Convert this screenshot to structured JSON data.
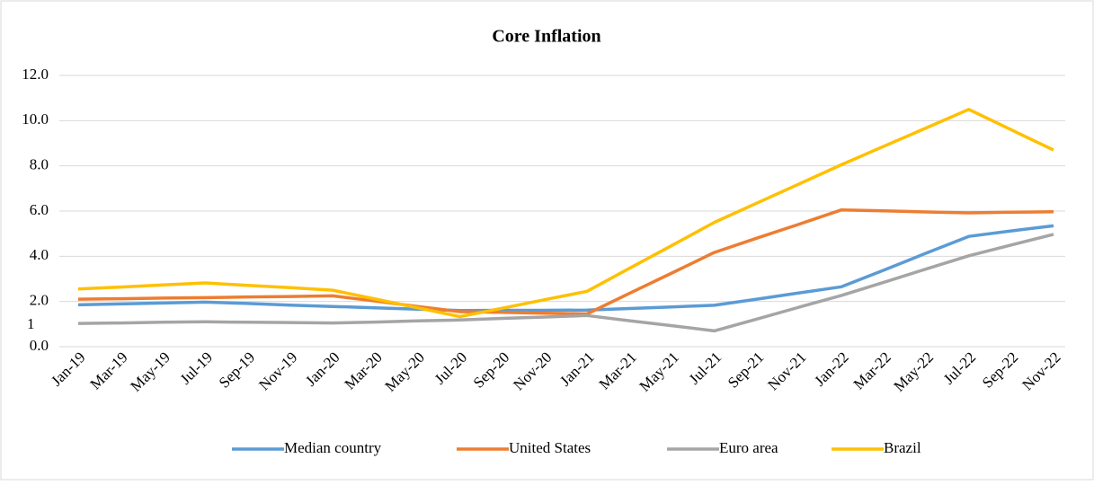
{
  "chart_data": {
    "type": "line",
    "title": "Core Inflation",
    "annotation": "1",
    "categories": [
      "Jan-19",
      "Mar-19",
      "May-19",
      "Jul-19",
      "Sep-19",
      "Nov-19",
      "Jan-20",
      "Mar-20",
      "May-20",
      "Jul-20",
      "Sep-20",
      "Nov-20",
      "Jan-21",
      "Mar-21",
      "May-21",
      "Jul-21",
      "Sep-21",
      "Nov-21",
      "Jan-22",
      "Mar-22",
      "May-22",
      "Jul-22",
      "Sep-22",
      "Nov-22"
    ],
    "series": [
      {
        "name": "Median country",
        "color": "#5b9bd5",
        "values": [
          1.85,
          1.89,
          1.93,
          1.97,
          1.91,
          1.84,
          1.78,
          1.72,
          1.66,
          1.6,
          1.61,
          1.61,
          1.62,
          1.69,
          1.76,
          1.83,
          2.1,
          2.38,
          2.65,
          3.39,
          4.14,
          4.88,
          5.12,
          5.35
        ]
      },
      {
        "name": "United States",
        "color": "#ed7d31",
        "values": [
          2.1,
          2.12,
          2.15,
          2.17,
          2.2,
          2.22,
          2.25,
          2.02,
          1.78,
          1.55,
          1.52,
          1.48,
          1.45,
          2.36,
          3.26,
          4.17,
          4.8,
          5.42,
          6.05,
          6.01,
          5.96,
          5.92,
          5.95,
          5.97
        ]
      },
      {
        "name": "Euro area",
        "color": "#a5a5a5",
        "values": [
          1.03,
          1.05,
          1.08,
          1.1,
          1.08,
          1.07,
          1.05,
          1.09,
          1.14,
          1.18,
          1.25,
          1.31,
          1.38,
          1.15,
          0.93,
          0.7,
          1.22,
          1.75,
          2.27,
          2.85,
          3.44,
          4.02,
          4.5,
          4.97
        ]
      },
      {
        "name": "Brazil",
        "color": "#ffc000",
        "values": [
          2.55,
          2.64,
          2.73,
          2.82,
          2.71,
          2.61,
          2.5,
          2.11,
          1.72,
          1.33,
          1.7,
          2.08,
          2.45,
          3.47,
          4.48,
          5.5,
          6.35,
          7.2,
          8.05,
          8.87,
          9.68,
          10.5,
          9.6,
          8.7
        ]
      }
    ],
    "ylim": [
      0,
      12
    ],
    "yticks": [
      {
        "value": 0,
        "label": "0.0"
      },
      {
        "value": 2,
        "label": "2.0"
      },
      {
        "value": 4,
        "label": "4.0"
      },
      {
        "value": 6,
        "label": "6.0"
      },
      {
        "value": 8,
        "label": "8.0"
      },
      {
        "value": 10,
        "label": "10.0"
      },
      {
        "value": 12,
        "label": "12.0"
      }
    ],
    "grid": true,
    "legend": "bottom"
  }
}
